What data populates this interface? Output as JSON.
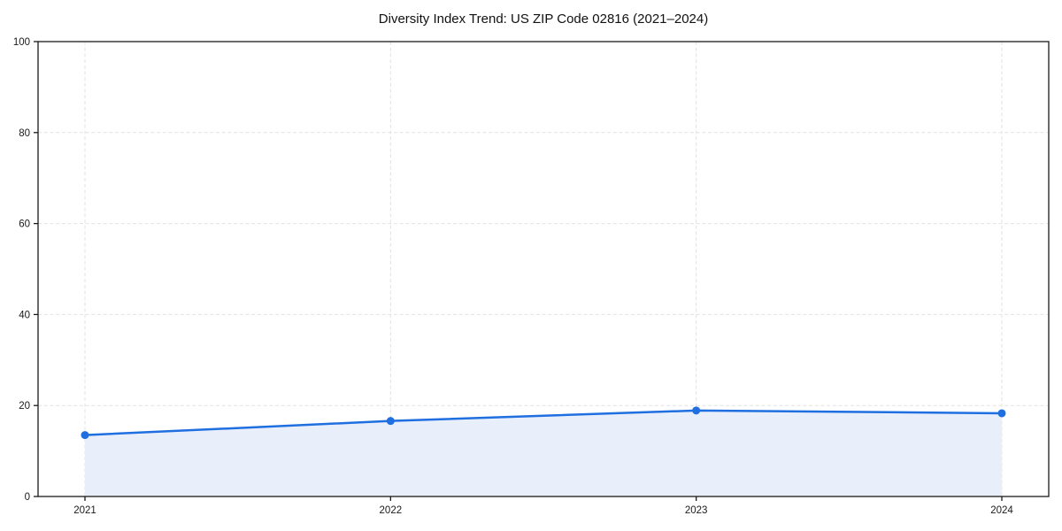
{
  "chart_data": {
    "type": "area",
    "title": "Diversity Index Trend: US ZIP Code 02816 (2021–2024)",
    "x": [
      "2021",
      "2022",
      "2023",
      "2024"
    ],
    "values": [
      13.5,
      16.6,
      18.9,
      18.3
    ],
    "ylim": [
      0,
      100
    ],
    "yticks": [
      0,
      20,
      40,
      60,
      80,
      100
    ],
    "grid": "dashed-both-axes",
    "legend_position": "none",
    "marker": "circle",
    "colors": {
      "line": "#1f6fe0",
      "marker": "#1f6fe0",
      "area_fill": "#e8effb",
      "grid": "#e2e2e2",
      "frame": "#1a1a1a",
      "tick_label": "#1a1a1a",
      "title": "#111111",
      "background": "#ffffff"
    }
  }
}
